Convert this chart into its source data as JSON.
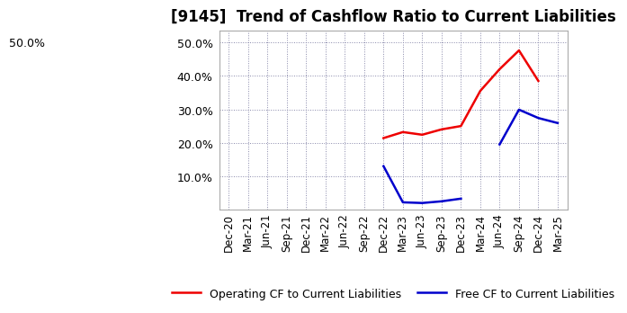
{
  "title": "[9145]  Trend of Cashflow Ratio to Current Liabilities",
  "x_labels": [
    "Dec-20",
    "Mar-21",
    "Jun-21",
    "Sep-21",
    "Dec-21",
    "Mar-22",
    "Jun-22",
    "Sep-22",
    "Dec-22",
    "Mar-23",
    "Jun-23",
    "Sep-23",
    "Dec-23",
    "Mar-24",
    "Jun-24",
    "Sep-24",
    "Dec-24",
    "Mar-25"
  ],
  "operating_x": [
    8,
    9,
    10,
    11,
    12,
    13,
    14,
    15,
    16
  ],
  "operating_y": [
    0.214,
    0.232,
    0.224,
    0.24,
    0.25,
    0.355,
    0.42,
    0.476,
    0.385
  ],
  "free_cf_segments": [
    {
      "x": [
        8,
        9,
        10,
        11,
        12
      ],
      "y": [
        0.13,
        0.022,
        0.02,
        0.025,
        0.033
      ]
    },
    {
      "x": [
        14,
        15,
        16,
        17
      ],
      "y": [
        0.195,
        0.299,
        0.274,
        0.259
      ]
    }
  ],
  "operating_color": "#ee0000",
  "free_color": "#0000cc",
  "background_color": "#ffffff",
  "plot_bg_color": "#ffffff",
  "grid_color": "#8888aa",
  "ylim_min": 0.0,
  "ylim_max": 0.535,
  "yticks": [
    0.1,
    0.2,
    0.3,
    0.4,
    0.5
  ],
  "ytop_label": "50.0%",
  "legend_op": "Operating CF to Current Liabilities",
  "legend_free": "Free CF to Current Liabilities",
  "linewidth": 1.8,
  "title_fontsize": 12,
  "tick_fontsize": 8.5,
  "ylabel_fontsize": 9
}
